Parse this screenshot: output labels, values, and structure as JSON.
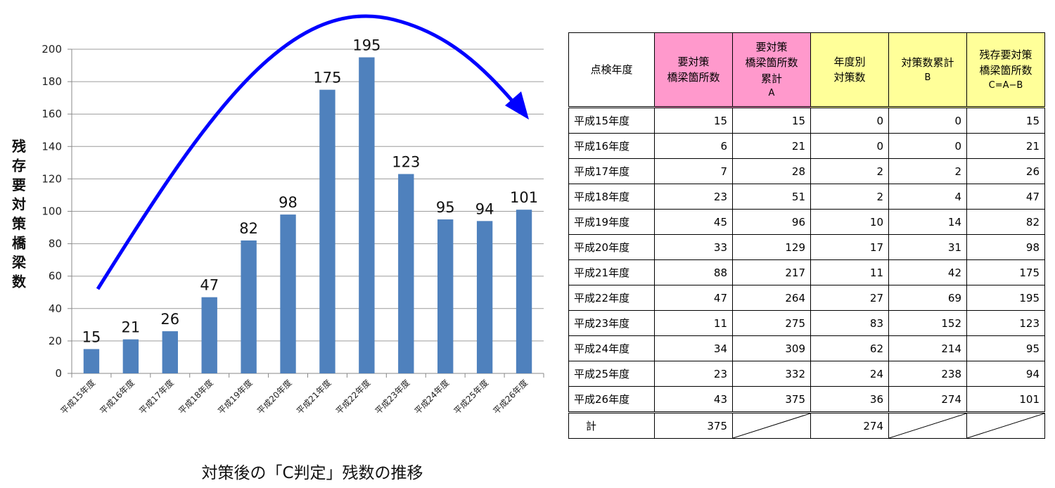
{
  "chart_data": {
    "type": "bar",
    "title": "対策後の「C判定」残数の推移",
    "ylabel": "残存要対策橋梁数",
    "xlabel": "",
    "ylim": [
      0,
      200
    ],
    "ytick_values": [
      0,
      20,
      40,
      60,
      80,
      100,
      120,
      140,
      160,
      180,
      200
    ],
    "ytick_labels": [
      "0",
      "20",
      "40",
      "60",
      "80",
      "100",
      "120",
      "140",
      "160",
      "180",
      "200"
    ],
    "categories": [
      "平成15年度",
      "平成16年度",
      "平成17年度",
      "平成18年度",
      "平成19年度",
      "平成20年度",
      "平成21年度",
      "平成22年度",
      "平成23年度",
      "平成24年度",
      "平成25年度",
      "平成26年度"
    ],
    "values": [
      15,
      21,
      26,
      47,
      82,
      98,
      175,
      195,
      123,
      95,
      94,
      101
    ],
    "data_labels": [
      "15",
      "21",
      "26",
      "47",
      "82",
      "98",
      "175",
      "195",
      "123",
      "95",
      "94",
      "101"
    ],
    "grid": true,
    "bar_color": "#4f81bd",
    "trend_arrow_color": "#0000ff"
  },
  "table": {
    "headers": [
      {
        "lines": [
          "点検年度"
        ],
        "color": "white"
      },
      {
        "lines": [
          "要対策",
          "橋梁箇所数"
        ],
        "color": "pink"
      },
      {
        "lines": [
          "要対策",
          "橋梁箇所数",
          "累計",
          "A"
        ],
        "color": "pink"
      },
      {
        "lines": [
          "年度別",
          "対策数"
        ],
        "color": "yellow"
      },
      {
        "lines": [
          "対策数累計",
          "B"
        ],
        "color": "yellow"
      },
      {
        "lines": [
          "残存要対策",
          "橋梁箇所数",
          "C=A−B"
        ],
        "color": "yellow"
      }
    ],
    "rows": [
      [
        "平成15年度",
        "15",
        "15",
        "0",
        "0",
        "15"
      ],
      [
        "平成16年度",
        "6",
        "21",
        "0",
        "0",
        "21"
      ],
      [
        "平成17年度",
        "7",
        "28",
        "2",
        "2",
        "26"
      ],
      [
        "平成18年度",
        "23",
        "51",
        "2",
        "4",
        "47"
      ],
      [
        "平成19年度",
        "45",
        "96",
        "10",
        "14",
        "82"
      ],
      [
        "平成20年度",
        "33",
        "129",
        "17",
        "31",
        "98"
      ],
      [
        "平成21年度",
        "88",
        "217",
        "11",
        "42",
        "175"
      ],
      [
        "平成22年度",
        "47",
        "264",
        "27",
        "69",
        "195"
      ],
      [
        "平成23年度",
        "11",
        "275",
        "83",
        "152",
        "123"
      ],
      [
        "平成24年度",
        "34",
        "309",
        "62",
        "214",
        "95"
      ],
      [
        "平成25年度",
        "23",
        "332",
        "24",
        "238",
        "94"
      ],
      [
        "平成26年度",
        "43",
        "375",
        "36",
        "274",
        "101"
      ]
    ],
    "total": {
      "label": "計",
      "col1": "375",
      "col3": "274"
    }
  }
}
